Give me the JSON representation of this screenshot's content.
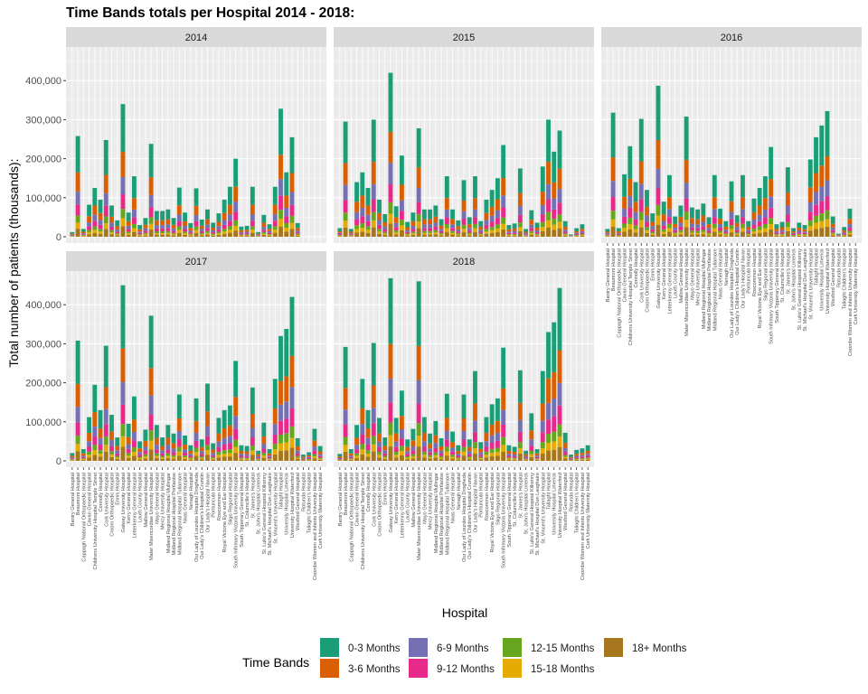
{
  "chart_data": {
    "type": "bar",
    "stacked": true,
    "title": "Time Bands totals per Hospital 2014 - 2018:",
    "xlabel": "Hospital",
    "ylabel": "Total number of patients (thousands):",
    "ylim": [
      0,
      470000
    ],
    "yticks": [
      0,
      100000,
      200000,
      300000,
      400000
    ],
    "ytick_labels": [
      "0",
      "100,000",
      "200,000",
      "300,000",
      "400,000"
    ],
    "grid": true,
    "legend": {
      "title": "Time Bands",
      "position": "bottom",
      "colors": [
        "#1B9E77",
        "#D95F02",
        "#7570B3",
        "#E7298A",
        "#66A61E",
        "#E6AB02",
        "#A6761D"
      ]
    },
    "bands": [
      "0-3 Months",
      "3-6 Months",
      "6-9 Months",
      "9-12 Months",
      "12-15 Months",
      "15-18 Months",
      "18+ Months"
    ],
    "categories": [
      "Bantry General Hospital",
      "Beaumont Hospital",
      "Cappagh National Orthopaedic Hospital",
      "Cavan General Hospital",
      "Childrens University Hospital Temple Street",
      "Connolly Hospital",
      "Cork University Hospital",
      "Croom Orthopaedic Hospital",
      "Ennis Hospital",
      "Galway University Hospital",
      "Kerry General Hospital",
      "Letterkenny General Hospital",
      "Louth County Hospital",
      "Mallow General Hospital",
      "Mater Misericordiae University Hospital",
      "Mayo General Hospital",
      "Mercy University Hospital",
      "Midland Regional Hospital Mullingar",
      "Midland Regional Hospital Portlaoise",
      "Midland Regional Hospital Tullamore",
      "Naas General Hospital",
      "Nenagh Hospital",
      "Our Lady of Lourdes Hospital Drogheda",
      "Our Lady's Children's Hospital Crumlin",
      "Our Lady's Hospital Navan",
      "Portiuncula Hospital",
      "Roscommon Hospital",
      "Royal Victoria Eye and Ear Hospital",
      "Sligo Regional Hospital",
      "South Infirmary Victoria University Hospital",
      "South Tipperary General Hospital",
      "St. Columcille's Hospital",
      "St. James's Hospital",
      "St. John's Hospital Limerick",
      "St. Luke's General Hospital Kilkenny",
      "St. Michael's Hospital Dun Laoghaire",
      "St. Vincent's University Hospital",
      "Tallaght Hospital",
      "University Hospital Limerick",
      "University Hospital Waterford",
      "Wexford General Hospital",
      "Rotunda Hospital",
      "Tallaght Children's Hospital",
      "Coombe Women and Infants University Hospital",
      "Cork University Maternity Hospital"
    ],
    "series": [
      {
        "name": "2014",
        "totals": [
          12000,
          258000,
          20000,
          82000,
          125000,
          95000,
          248000,
          80000,
          42000,
          340000,
          62000,
          155000,
          30000,
          48000,
          238000,
          66000,
          66000,
          70000,
          48000,
          126000,
          62000,
          35000,
          124000,
          44000,
          70000,
          36000,
          60000,
          95000,
          128000,
          200000,
          26000,
          28000,
          128000,
          12000,
          56000,
          32000,
          128000,
          328000,
          165000,
          255000,
          35000,
          0,
          0,
          0,
          0
        ]
      },
      {
        "name": "2015",
        "totals": [
          22000,
          295000,
          20000,
          140000,
          165000,
          125000,
          300000,
          95000,
          58000,
          420000,
          78000,
          208000,
          38000,
          62000,
          278000,
          70000,
          70000,
          80000,
          45000,
          155000,
          70000,
          42000,
          145000,
          50000,
          155000,
          40000,
          95000,
          120000,
          150000,
          235000,
          30000,
          34000,
          175000,
          20000,
          68000,
          36000,
          180000,
          300000,
          218000,
          272000,
          40000,
          6000,
          22000,
          32000,
          0
        ]
      },
      {
        "name": "2016",
        "totals": [
          20000,
          318000,
          22000,
          160000,
          232000,
          140000,
          302000,
          120000,
          60000,
          387000,
          90000,
          158000,
          52000,
          80000,
          308000,
          75000,
          70000,
          85000,
          50000,
          158000,
          72000,
          40000,
          142000,
          55000,
          158000,
          40000,
          98000,
          125000,
          155000,
          230000,
          32000,
          38000,
          178000,
          22000,
          36000,
          30000,
          198000,
          255000,
          285000,
          322000,
          52000,
          8000,
          25000,
          72000,
          0
        ]
      },
      {
        "name": "2017",
        "totals": [
          20000,
          308000,
          30000,
          112000,
          195000,
          130000,
          295000,
          118000,
          60000,
          450000,
          95000,
          165000,
          50000,
          80000,
          372000,
          92000,
          60000,
          92000,
          70000,
          170000,
          65000,
          40000,
          160000,
          55000,
          198000,
          45000,
          110000,
          130000,
          142000,
          256000,
          40000,
          38000,
          188000,
          26000,
          98000,
          30000,
          210000,
          320000,
          338000,
          420000,
          58000,
          16000,
          22000,
          82000,
          38000
        ]
      },
      {
        "name": "2018",
        "totals": [
          18000,
          292000,
          30000,
          92000,
          210000,
          130000,
          302000,
          110000,
          60000,
          468000,
          110000,
          180000,
          55000,
          82000,
          460000,
          112000,
          70000,
          102000,
          58000,
          172000,
          75000,
          40000,
          170000,
          55000,
          230000,
          48000,
          112000,
          145000,
          160000,
          290000,
          40000,
          36000,
          232000,
          26000,
          122000,
          30000,
          230000,
          330000,
          355000,
          443000,
          72000,
          16000,
          28000,
          32000,
          40000
        ]
      }
    ],
    "band_shares": [
      0.36,
      0.19,
      0.13,
      0.11,
      0.07,
      0.06,
      0.08
    ]
  }
}
